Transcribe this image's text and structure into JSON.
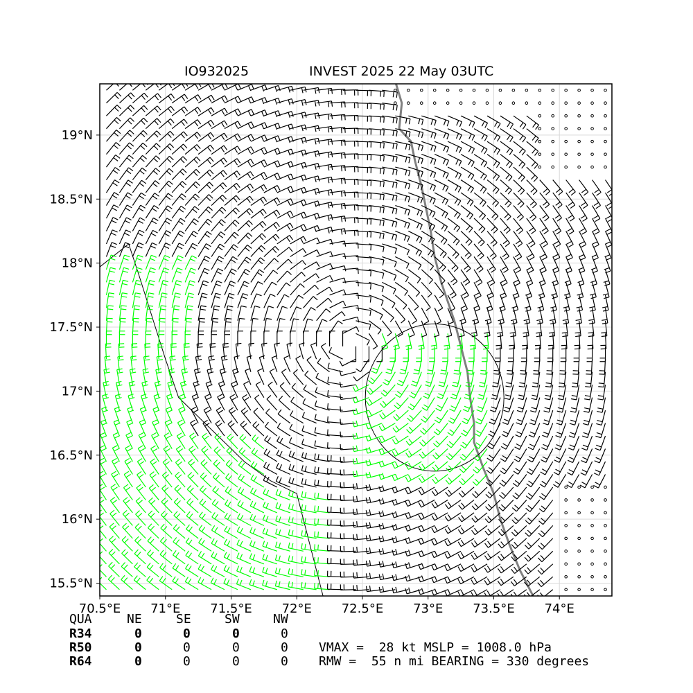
{
  "title": {
    "storm_id": "IO932025",
    "storm_label": "INVEST 2025 22 May 03UTC"
  },
  "map": {
    "lon_range": [
      70.5,
      74.4
    ],
    "lat_range": [
      15.4,
      19.4
    ],
    "lon_ticks": [
      "70.5°E",
      "71°E",
      "71.5°E",
      "72°E",
      "72.5°E",
      "73°E",
      "73.5°E",
      "74°E"
    ],
    "lat_ticks": [
      "19°N",
      "18.5°N",
      "18°N",
      "17.5°N",
      "17°N",
      "16.5°N",
      "16°N",
      "15.5°N"
    ],
    "center": {
      "lon": 72.4,
      "lat": 17.35
    },
    "grid": true,
    "colors": {
      "barb_default": "#000000",
      "barb_high": "#00ff00",
      "coastline": "#808080",
      "contour": "#000000"
    }
  },
  "wind_radii": {
    "header": [
      "QUA",
      "NE",
      "SE",
      "SW",
      "NW"
    ],
    "rows": [
      {
        "label": "R34",
        "values": [
          "0",
          "0",
          "0",
          "0"
        ]
      },
      {
        "label": "R50",
        "values": [
          "0",
          "0",
          "0",
          "0"
        ]
      },
      {
        "label": "R64",
        "values": [
          "0",
          "0",
          "0",
          "0"
        ]
      }
    ]
  },
  "summary": {
    "line1": "VMAX =  28 kt MSLP = 1008.0 hPa",
    "line2": "RMW =  55 n mi BEARING = 330 degrees"
  }
}
